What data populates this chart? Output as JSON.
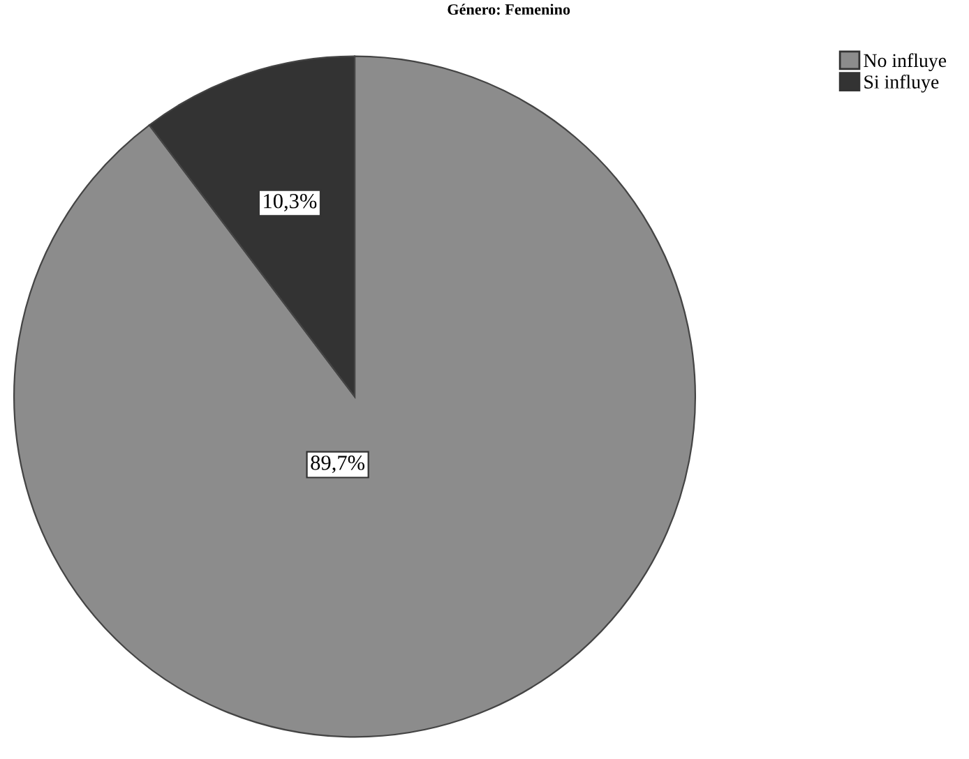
{
  "chart_data": {
    "type": "pie",
    "title": "Género: Femenino",
    "categories": [
      "No influye",
      "Si influye"
    ],
    "values": [
      89.7,
      10.3
    ],
    "colors": [
      "#8c8c8c",
      "#333333"
    ],
    "value_labels": [
      "89,7%",
      "10,3%"
    ],
    "legend": "top right"
  }
}
